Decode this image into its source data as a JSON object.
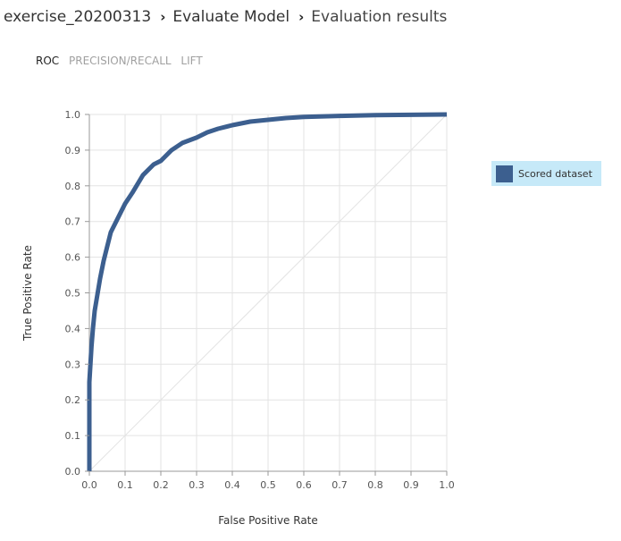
{
  "breadcrumb": {
    "items": [
      "exercise_20200313",
      "Evaluate Model",
      "Evaluation results"
    ],
    "separator": "›"
  },
  "tabs": [
    {
      "label": "ROC",
      "active": true
    },
    {
      "label": "PRECISION/RECALL",
      "active": false
    },
    {
      "label": "LIFT",
      "active": false
    }
  ],
  "colors": {
    "series": "#3c5f8f",
    "diagonal": "#e3e3e3",
    "grid": "#e3e3e3",
    "axis": "#999999",
    "legend_bg": "#c6e9f8",
    "tab_active": "#222222",
    "tab_inactive": "#a0a0a0"
  },
  "chart_data": {
    "type": "line",
    "title": "",
    "xlabel": "False Positive Rate",
    "ylabel": "True Positive Rate",
    "xlim": [
      0,
      1
    ],
    "ylim": [
      0,
      1
    ],
    "x_ticks": [
      "0.0",
      "0.1",
      "0.2",
      "0.3",
      "0.4",
      "0.5",
      "0.6",
      "0.7",
      "0.8",
      "0.9",
      "1.0"
    ],
    "y_ticks": [
      "0.0",
      "0.1",
      "0.2",
      "0.3",
      "0.4",
      "0.5",
      "0.6",
      "0.7",
      "0.8",
      "0.9",
      "1.0"
    ],
    "grid": true,
    "legend_position": "right",
    "reference_line": {
      "x": [
        0,
        1
      ],
      "y": [
        0,
        1
      ]
    },
    "series": [
      {
        "name": "Scored dataset",
        "x": [
          0,
          0,
          0.003,
          0.006,
          0.01,
          0.015,
          0.02,
          0.03,
          0.04,
          0.05,
          0.06,
          0.08,
          0.1,
          0.12,
          0.15,
          0.18,
          0.2,
          0.23,
          0.26,
          0.3,
          0.33,
          0.36,
          0.4,
          0.45,
          0.5,
          0.55,
          0.6,
          0.7,
          0.8,
          0.9,
          1.0
        ],
        "y": [
          0,
          0.25,
          0.3,
          0.35,
          0.4,
          0.45,
          0.48,
          0.54,
          0.59,
          0.63,
          0.67,
          0.71,
          0.75,
          0.78,
          0.83,
          0.86,
          0.87,
          0.9,
          0.92,
          0.935,
          0.95,
          0.96,
          0.97,
          0.98,
          0.985,
          0.99,
          0.993,
          0.996,
          0.998,
          0.999,
          1.0
        ]
      }
    ]
  }
}
